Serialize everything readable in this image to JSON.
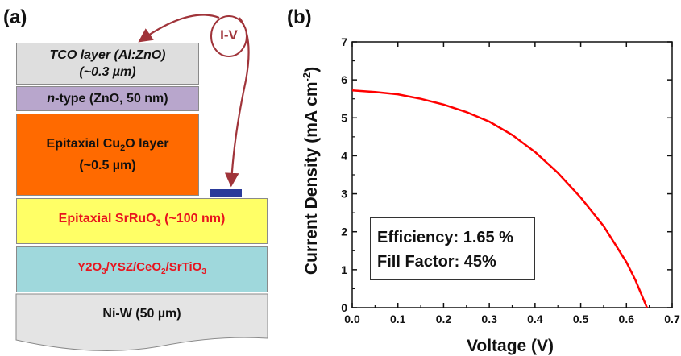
{
  "panel_a": {
    "label": "(a)",
    "iv_label": "I-V",
    "layers": {
      "tco_line1": "TCO layer (Al:ZnO)",
      "tco_line2": "(~0.3 µm)",
      "ntype_prefix": "n",
      "ntype_rest": "-type (ZnO, 50 nm)",
      "cu2o_line1_pre": "Epitaxial Cu",
      "cu2o_sub": "2",
      "cu2o_line1_post": "O layer",
      "cu2o_line2": "(~0.5 µm)",
      "srruo3_pre": "Epitaxial SrRuO",
      "srruo3_sub": "3",
      "srruo3_post": " (~100 nm)",
      "buffer_a": "Y2O",
      "buffer_a_sub": "3",
      "buffer_b": "/YSZ/CeO",
      "buffer_b_sub": "2",
      "buffer_c": "/SrTiO",
      "buffer_c_sub": "3",
      "substrate": "Ni-W (50 µm)"
    },
    "colors": {
      "tco": "#dedede",
      "ntype": "#b8a6cc",
      "cu2o": "#ff6a00",
      "srruo3": "#ffff66",
      "buffer": "#9fd8dc",
      "substrate": "#e4e4e4",
      "contact": "#2a3a9a",
      "arrow": "#a0343a"
    }
  },
  "panel_b": {
    "label": "(b)",
    "annotation_line1": "Efficiency: 1.65 %",
    "annotation_line2": "Fill Factor: 45%"
  },
  "chart_data": {
    "type": "line",
    "xlabel": "Voltage (V)",
    "ylabel_pre": "Current Density (mA cm",
    "ylabel_sup": "-2",
    "ylabel_post": ")",
    "xlim": [
      0.0,
      0.7
    ],
    "ylim": [
      0,
      7
    ],
    "x_ticks": [
      "0.0",
      "0.1",
      "0.2",
      "0.3",
      "0.4",
      "0.5",
      "0.6",
      "0.7"
    ],
    "y_ticks": [
      "0",
      "1",
      "2",
      "3",
      "4",
      "5",
      "6",
      "7"
    ],
    "grid": false,
    "line_color": "#ff0000",
    "series": [
      {
        "x": [
          0.0,
          0.05,
          0.1,
          0.15,
          0.2,
          0.25,
          0.3,
          0.35,
          0.4,
          0.45,
          0.5,
          0.55,
          0.6,
          0.62,
          0.645
        ],
        "values": [
          5.72,
          5.68,
          5.62,
          5.5,
          5.35,
          5.15,
          4.9,
          4.55,
          4.1,
          3.55,
          2.9,
          2.15,
          1.2,
          0.72,
          0.0
        ]
      }
    ]
  }
}
